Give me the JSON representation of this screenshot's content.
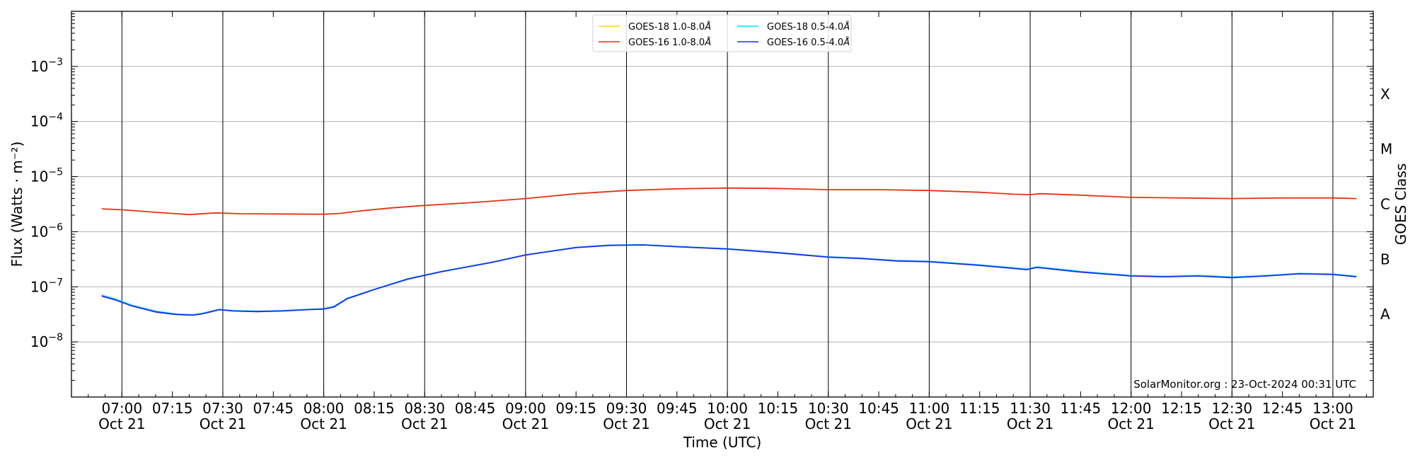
{
  "chart_data": {
    "type": "line",
    "ylabel": "Flux (Watts · m⁻²)",
    "xlabel": "Time (UTC)",
    "right_label": "GOES Class",
    "y_scale": "log",
    "ylim": [
      1e-09,
      0.01
    ],
    "xlim_minutes": [
      405,
      792
    ],
    "y_ticks": [
      {
        "exp": -3,
        "label": "10",
        "sup": "−3"
      },
      {
        "exp": -4,
        "label": "10",
        "sup": "−4"
      },
      {
        "exp": -5,
        "label": "10",
        "sup": "−5"
      },
      {
        "exp": -6,
        "label": "10",
        "sup": "−6"
      },
      {
        "exp": -7,
        "label": "10",
        "sup": "−7"
      },
      {
        "exp": -8,
        "label": "10",
        "sup": "−8"
      }
    ],
    "x_ticks": [
      {
        "t": "07:00",
        "d": "Oct 21"
      },
      {
        "t": "07:15",
        "d": ""
      },
      {
        "t": "07:30",
        "d": "Oct 21"
      },
      {
        "t": "07:45",
        "d": ""
      },
      {
        "t": "08:00",
        "d": "Oct 21"
      },
      {
        "t": "08:15",
        "d": ""
      },
      {
        "t": "08:30",
        "d": "Oct 21"
      },
      {
        "t": "08:45",
        "d": ""
      },
      {
        "t": "09:00",
        "d": "Oct 21"
      },
      {
        "t": "09:15",
        "d": ""
      },
      {
        "t": "09:30",
        "d": "Oct 21"
      },
      {
        "t": "09:45",
        "d": ""
      },
      {
        "t": "10:00",
        "d": "Oct 21"
      },
      {
        "t": "10:15",
        "d": ""
      },
      {
        "t": "10:30",
        "d": "Oct 21"
      },
      {
        "t": "10:45",
        "d": ""
      },
      {
        "t": "11:00",
        "d": "Oct 21"
      },
      {
        "t": "11:15",
        "d": ""
      },
      {
        "t": "11:30",
        "d": "Oct 21"
      },
      {
        "t": "11:45",
        "d": ""
      },
      {
        "t": "12:00",
        "d": "Oct 21"
      },
      {
        "t": "12:15",
        "d": ""
      },
      {
        "t": "12:30",
        "d": "Oct 21"
      },
      {
        "t": "12:45",
        "d": ""
      },
      {
        "t": "13:00",
        "d": "Oct 21"
      }
    ],
    "vlines": [
      "07:00",
      "07:30",
      "08:00",
      "08:30",
      "09:00",
      "09:30",
      "10:00",
      "10:30",
      "11:00",
      "11:30",
      "12:00",
      "12:30",
      "13:00"
    ],
    "goes_classes": [
      {
        "label": "X",
        "exp": -3.5
      },
      {
        "label": "M",
        "exp": -4.5
      },
      {
        "label": "C",
        "exp": -5.5
      },
      {
        "label": "B",
        "exp": -6.5
      },
      {
        "label": "A",
        "exp": -7.5
      }
    ],
    "legend": [
      {
        "name": "GOES-18 1.0-8.0",
        "unit": "Å",
        "color": "#ffd700"
      },
      {
        "name": "GOES-18 0.5-4.0",
        "unit": "Å",
        "color": "#00e5ff"
      },
      {
        "name": "GOES-16 1.0-8.0",
        "unit": "Å",
        "color": "#e63312"
      },
      {
        "name": "GOES-16 0.5-4.0",
        "unit": "Å",
        "color": "#1c2ee6"
      }
    ],
    "series": [
      {
        "name": "GOES-16 1.0-8.0",
        "color": "#e63312",
        "x": [
          "06:54",
          "07:00",
          "07:10",
          "07:20",
          "07:28",
          "07:35",
          "07:45",
          "08:00",
          "08:05",
          "08:10",
          "08:20",
          "08:30",
          "08:45",
          "09:00",
          "09:15",
          "09:30",
          "09:45",
          "10:00",
          "10:15",
          "10:30",
          "10:45",
          "11:00",
          "11:15",
          "11:25",
          "11:30",
          "11:33",
          "11:45",
          "12:00",
          "12:15",
          "12:30",
          "12:45",
          "13:00",
          "13:07"
        ],
        "y": [
          2.6e-06,
          2.5e-06,
          2.25e-06,
          2.05e-06,
          2.2e-06,
          2.12e-06,
          2.1e-06,
          2.08e-06,
          2.15e-06,
          2.35e-06,
          2.7e-06,
          3e-06,
          3.4e-06,
          4e-06,
          4.9e-06,
          5.6e-06,
          6e-06,
          6.2e-06,
          6.1e-06,
          5.8e-06,
          5.8e-06,
          5.6e-06,
          5.2e-06,
          4.8e-06,
          4.7e-06,
          4.9e-06,
          4.6e-06,
          4.2e-06,
          4.1e-06,
          4e-06,
          4.1e-06,
          4.1e-06,
          4e-06
        ]
      },
      {
        "name": "GOES-18 0.5-4.0",
        "color": "#00e5ff",
        "x": [
          "06:54",
          "06:58",
          "07:03",
          "07:10",
          "07:16",
          "07:21",
          "07:24",
          "07:29",
          "07:33",
          "07:40",
          "07:48",
          "07:55",
          "08:00",
          "08:03",
          "08:07",
          "08:15",
          "08:25",
          "08:35",
          "08:50",
          "09:00",
          "09:15",
          "09:25",
          "09:35",
          "09:45",
          "10:00",
          "10:15",
          "10:30",
          "10:40",
          "10:50",
          "11:00",
          "11:15",
          "11:29",
          "11:32",
          "11:45",
          "12:00",
          "12:10",
          "12:20",
          "12:30",
          "12:40",
          "12:50",
          "13:00",
          "13:07"
        ],
        "y": [
          7e-08,
          6e-08,
          4.6e-08,
          3.6e-08,
          3.2e-08,
          3.1e-08,
          3.3e-08,
          3.9e-08,
          3.7e-08,
          3.6e-08,
          3.7e-08,
          3.9e-08,
          4e-08,
          4.4e-08,
          6.2e-08,
          9e-08,
          1.4e-07,
          1.9e-07,
          2.8e-07,
          3.8e-07,
          5.2e-07,
          5.7e-07,
          5.8e-07,
          5.4e-07,
          4.9e-07,
          4.2e-07,
          3.5e-07,
          3.3e-07,
          3e-07,
          2.9e-07,
          2.5e-07,
          2.1e-07,
          2.3e-07,
          1.9e-07,
          1.6e-07,
          1.55e-07,
          1.6e-07,
          1.5e-07,
          1.6e-07,
          1.75e-07,
          1.7e-07,
          1.55e-07
        ]
      },
      {
        "name": "GOES-16 0.5-4.0",
        "color": "#1c2ee6",
        "x": [
          "06:54",
          "06:58",
          "07:03",
          "07:10",
          "07:16",
          "07:21",
          "07:24",
          "07:29",
          "07:33",
          "07:40",
          "07:48",
          "07:55",
          "08:00",
          "08:03",
          "08:07",
          "08:15",
          "08:25",
          "08:35",
          "08:50",
          "09:00",
          "09:15",
          "09:25",
          "09:35",
          "09:45",
          "10:00",
          "10:15",
          "10:30",
          "10:40",
          "10:50",
          "11:00",
          "11:15",
          "11:29",
          "11:32",
          "11:45",
          "12:00",
          "12:10",
          "12:20",
          "12:30",
          "12:40",
          "12:50",
          "13:00",
          "13:07"
        ],
        "y": [
          6.8e-08,
          5.8e-08,
          4.5e-08,
          3.5e-08,
          3.15e-08,
          3.05e-08,
          3.25e-08,
          3.85e-08,
          3.65e-08,
          3.55e-08,
          3.65e-08,
          3.85e-08,
          3.95e-08,
          4.3e-08,
          6.1e-08,
          8.9e-08,
          1.38e-07,
          1.88e-07,
          2.78e-07,
          3.78e-07,
          5.15e-07,
          5.65e-07,
          5.75e-07,
          5.35e-07,
          4.85e-07,
          4.15e-07,
          3.45e-07,
          3.25e-07,
          2.95e-07,
          2.85e-07,
          2.45e-07,
          2.05e-07,
          2.25e-07,
          1.85e-07,
          1.57e-07,
          1.52e-07,
          1.57e-07,
          1.47e-07,
          1.57e-07,
          1.72e-07,
          1.67e-07,
          1.52e-07
        ]
      }
    ],
    "watermark": "SolarMonitor.org : 23-Oct-2024 00:31 UTC"
  }
}
